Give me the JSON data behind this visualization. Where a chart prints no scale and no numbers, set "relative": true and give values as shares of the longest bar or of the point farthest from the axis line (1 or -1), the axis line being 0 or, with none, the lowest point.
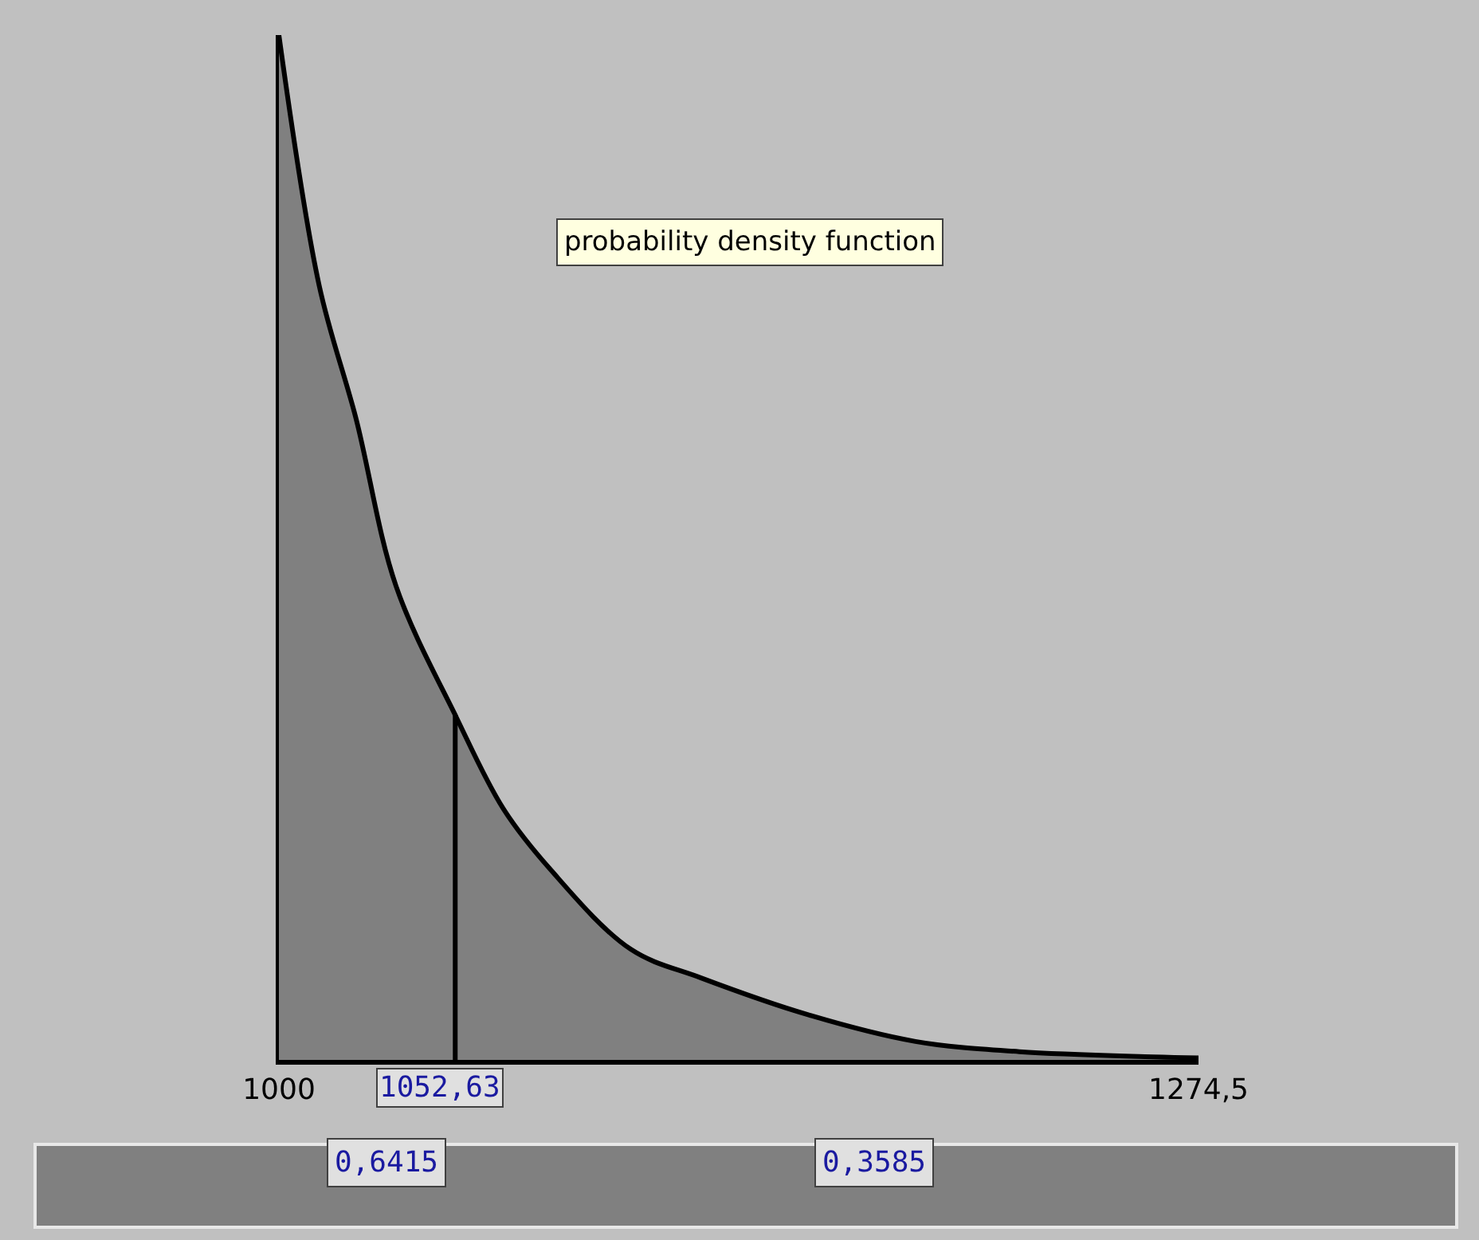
{
  "chart_data": {
    "type": "area",
    "relative": true,
    "x": [
      1000,
      1012,
      1023,
      1035,
      1053,
      1067,
      1081,
      1105,
      1126,
      1158,
      1190,
      1221,
      1261,
      1274.5
    ],
    "series": [
      {
        "color": "#808080",
        "values": [
          1.0,
          0.756,
          0.626,
          0.462,
          0.334,
          0.245,
          0.186,
          0.108,
          0.08,
          0.044,
          0.018,
          0.008,
          0.003,
          0.002
        ]
      }
    ],
    "xlim": [
      1000,
      1274.5
    ],
    "xticks": [
      1000,
      {
        "value": 1274.5,
        "label": "1274,5"
      }
    ],
    "ref_lines": [
      {
        "axis": "x",
        "value": 1052.63,
        "label": "1052,63",
        "color": "#000000"
      }
    ],
    "annotations": [
      "probability density function",
      "0,6415",
      "0,3585"
    ],
    "grid": false,
    "legend": false
  }
}
